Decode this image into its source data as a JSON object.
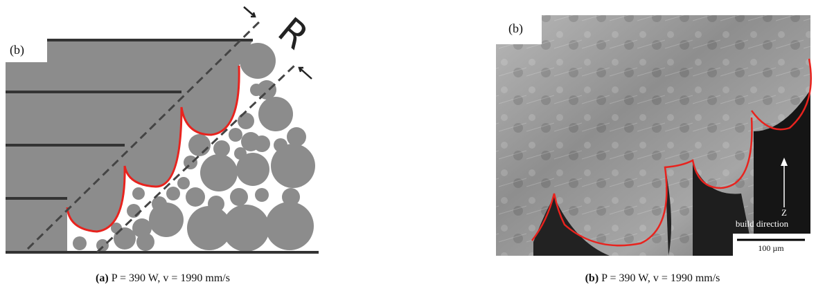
{
  "panels": [
    {
      "label": "(b)",
      "annotation": "R",
      "caption": {
        "tag": "(a)",
        "text": "P = 390 W, v = 1990 mm/s"
      }
    },
    {
      "label": "(b)",
      "direction_label": "Z",
      "direction_text": "build direction",
      "scale_bar": "100 µm",
      "caption": {
        "tag": "(b)",
        "text": "P = 390 W, v = 1990 mm/s"
      }
    }
  ]
}
